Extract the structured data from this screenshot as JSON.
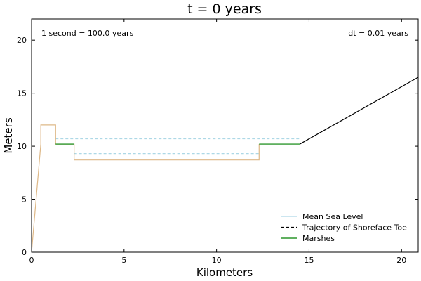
{
  "chart_data": {
    "type": "line",
    "title": "t = 0 years",
    "xlabel": "Kilometers",
    "ylabel": "Meters",
    "xlim": [
      0,
      20.9
    ],
    "ylim": [
      0,
      22
    ],
    "xticks": [
      0,
      5,
      10,
      15,
      20
    ],
    "yticks": [
      0,
      5,
      10,
      15,
      20
    ],
    "annotations": {
      "time_scale": "1 second = 100.0 years",
      "dt": "dt = 0.01 years"
    },
    "legend_position": "lower-right",
    "legend": [
      {
        "label": "Mean Sea Level",
        "color": "#add8e6",
        "style": "solid"
      },
      {
        "label": "Trajectory of Shoreface Toe",
        "color": "#000000",
        "style": "dashed"
      },
      {
        "label": "Marshes",
        "color": "#008000",
        "style": "solid"
      }
    ],
    "series": [
      {
        "color": "#add8e6",
        "style": "dashed",
        "segments": [
          [
            [
              1.3,
              10.7
            ],
            [
              14.5,
              10.7
            ]
          ],
          [
            [
              2.3,
              9.3
            ],
            [
              12.3,
              9.3
            ]
          ]
        ]
      },
      {
        "color": "#deb887",
        "style": "solid",
        "segments": [
          [
            [
              0,
              0
            ],
            [
              0.5,
              10.2
            ],
            [
              0.5,
              12
            ],
            [
              1.3,
              12
            ],
            [
              1.3,
              10.2
            ],
            [
              2.3,
              10.2
            ],
            [
              2.3,
              8.7
            ],
            [
              12.3,
              8.7
            ],
            [
              12.3,
              10.2
            ]
          ]
        ]
      },
      {
        "color": "#008000",
        "style": "solid",
        "segments": [
          [
            [
              1.3,
              10.2
            ],
            [
              2.3,
              10.2
            ]
          ],
          [
            [
              12.3,
              10.2
            ],
            [
              14.5,
              10.2
            ]
          ]
        ]
      },
      {
        "color": "#000000",
        "style": "solid",
        "segments": [
          [
            [
              14.5,
              10.2
            ],
            [
              20.9,
              16.5
            ]
          ]
        ]
      }
    ]
  }
}
